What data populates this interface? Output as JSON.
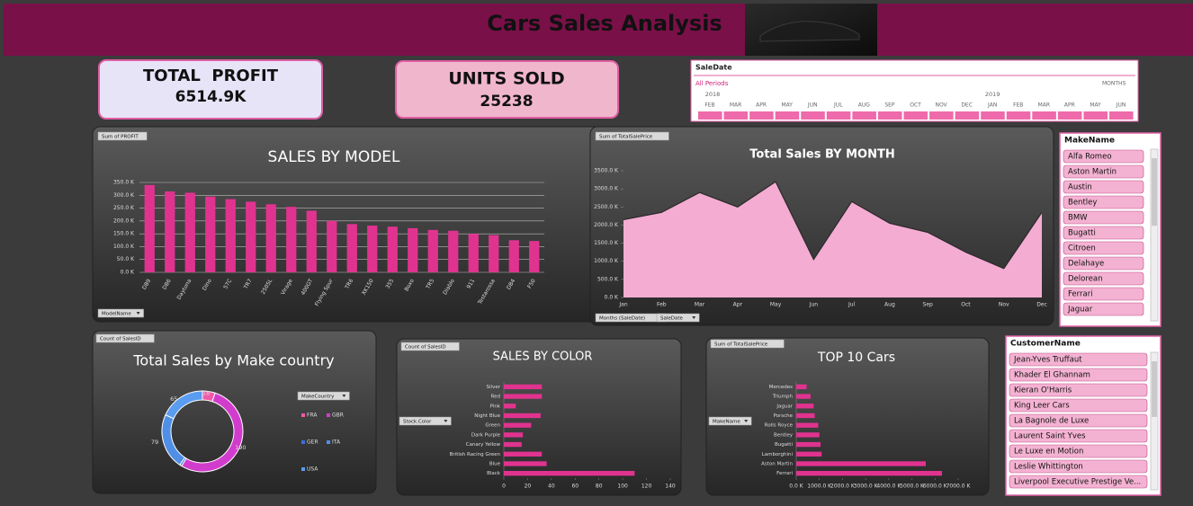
{
  "header": {
    "title": "Cars Sales Analysis"
  },
  "kpis": [
    {
      "label": "TOTAL  PROFIT",
      "value": "6514.9K"
    },
    {
      "label": "UNITS SOLD",
      "value": "25238"
    }
  ],
  "slicers": {
    "sale_date": {
      "title": "SaleDate",
      "period": "All Periods",
      "level": "MONTHS",
      "years": [
        "2018",
        "2019"
      ],
      "months": [
        "FEB",
        "MAR",
        "APR",
        "MAY",
        "JUN",
        "JUL",
        "AUG",
        "SEP",
        "OCT",
        "NOV",
        "DEC",
        "JAN",
        "FEB",
        "MAR",
        "APR",
        "MAY",
        "JUN"
      ]
    },
    "make_name": {
      "title": "MakeName",
      "items": [
        "Alfa Romeo",
        "Aston Martin",
        "Austin",
        "Bentley",
        "BMW",
        "Bugatti",
        "Citroen",
        "Delahaye",
        "Delorean",
        "Ferrari",
        "Jaguar"
      ]
    },
    "customer_name": {
      "title": "CustomerName",
      "items": [
        "Jean-Yves Truffaut",
        "Khader El Ghannam",
        "Kieran O'Harris",
        "King Leer Cars",
        "La Bagnole de Luxe",
        "Laurent Saint Yves",
        "Le Luxe en Motion",
        "Leslie Whittington",
        "Liverpool Executive Prestige Ve..."
      ]
    }
  },
  "chart_data": [
    {
      "type": "bar",
      "title": "SALES BY MODEL",
      "buttons": [
        "Sum of PROFIT",
        "ModelName"
      ],
      "categories": [
        "DB9",
        "DB6",
        "Daytona",
        "Dino",
        "57C",
        "TR7",
        "250SL",
        "Virage",
        "400GT",
        "Flying Spur",
        "TR6",
        "XK150",
        "355",
        "Boxo",
        "TR5",
        "Diablo",
        "911",
        "Testarossa",
        "DB4",
        "F50"
      ],
      "values": [
        340,
        315,
        310,
        295,
        285,
        275,
        265,
        255,
        240,
        200,
        188,
        182,
        178,
        172,
        165,
        162,
        150,
        145,
        125,
        122
      ],
      "color": "#e0338f",
      "ylim": [
        0,
        350
      ],
      "yticks": [
        {
          "value": 0,
          "label": "0.0 K"
        },
        {
          "value": 50,
          "label": "50.0 K"
        },
        {
          "value": 100,
          "label": "100.0 K"
        },
        {
          "value": 150,
          "label": "150.0 K"
        },
        {
          "value": 200,
          "label": "200.0 K"
        },
        {
          "value": 250,
          "label": "250.0 K"
        },
        {
          "value": 300,
          "label": "300.0 K"
        },
        {
          "value": 350,
          "label": "350.0 K"
        }
      ],
      "grid": true
    },
    {
      "type": "area",
      "title": "Total Sales BY MONTH",
      "buttons": [
        "Sum of TotalSalePrice",
        "Months (SaleDate)",
        "SaleDate"
      ],
      "categories": [
        "Jan",
        "Feb",
        "Mar",
        "Apr",
        "May",
        "Jun",
        "Jul",
        "Aug",
        "Sep",
        "Oct",
        "Nov",
        "Dec"
      ],
      "values": [
        2150,
        2350,
        2900,
        2500,
        3200,
        1050,
        2650,
        2050,
        1800,
        1250,
        800,
        2350
      ],
      "color": "#f4acd2",
      "ylim": [
        0,
        3500
      ],
      "yticks": [
        {
          "value": 0,
          "label": "0.0 K"
        },
        {
          "value": 500,
          "label": "500.0 K"
        },
        {
          "value": 1000,
          "label": "1000.0 K"
        },
        {
          "value": 1500,
          "label": "1500.0 K"
        },
        {
          "value": 2000,
          "label": "2000.0 K"
        },
        {
          "value": 2500,
          "label": "2500.0 K"
        },
        {
          "value": 3000,
          "label": "3000.0 K"
        },
        {
          "value": 3500,
          "label": "3500.0 K"
        }
      ],
      "grid": false
    },
    {
      "type": "pie",
      "title": "Total Sales by Make country",
      "buttons": [
        "Count of SalesID",
        "MakeCountry"
      ],
      "categories": [
        "FRA",
        "GBR",
        "GER",
        "ITA",
        "USA"
      ],
      "values": [
        18,
        190,
        3,
        79,
        65
      ],
      "colors": [
        "#f25aa8",
        "#d23ccc",
        "#3b6fd8",
        "#4f8fe6",
        "#5a9cf0"
      ]
    },
    {
      "type": "hbar",
      "title": "SALES BY COLOR",
      "buttons": [
        "Count of SalesID",
        "Stock.Color"
      ],
      "categories": [
        "Silver",
        "Red",
        "Pink",
        "Night Blue",
        "Green",
        "Dark Purple",
        "Canary Yellow",
        "British Racing Green",
        "Blue",
        "Black"
      ],
      "values": [
        32,
        32,
        10,
        31,
        23,
        16,
        15,
        32,
        36,
        110
      ],
      "color": "#e0338f",
      "xlim": [
        0,
        140
      ],
      "xticks": [
        0,
        20,
        40,
        60,
        80,
        100,
        120,
        140
      ]
    },
    {
      "type": "hbar",
      "title": "TOP 10 Cars",
      "buttons": [
        "Sum of TotalSalePrice",
        "MakeName"
      ],
      "categories": [
        "Mercedes",
        "Triumph",
        "Jaguar",
        "Porsche",
        "Rolls Royce",
        "Bentley",
        "Bugatti",
        "Lamborghini",
        "Aston Martin",
        "Ferrari"
      ],
      "values": [
        450,
        620,
        750,
        800,
        950,
        1000,
        1050,
        1100,
        5600,
        6300
      ],
      "color": "#e0338f",
      "xlim": [
        0,
        7000
      ],
      "xticks": [
        {
          "value": 0,
          "label": "0.0 K"
        },
        {
          "value": 1000,
          "label": "1000.0 K"
        },
        {
          "value": 2000,
          "label": "2000.0 K"
        },
        {
          "value": 3000,
          "label": "3000.0 K"
        },
        {
          "value": 4000,
          "label": "4000.0 K"
        },
        {
          "value": 5000,
          "label": "5000.0 K"
        },
        {
          "value": 6000,
          "label": "6000.0 K"
        },
        {
          "value": 7000,
          "label": "7000.0 K"
        }
      ]
    }
  ]
}
